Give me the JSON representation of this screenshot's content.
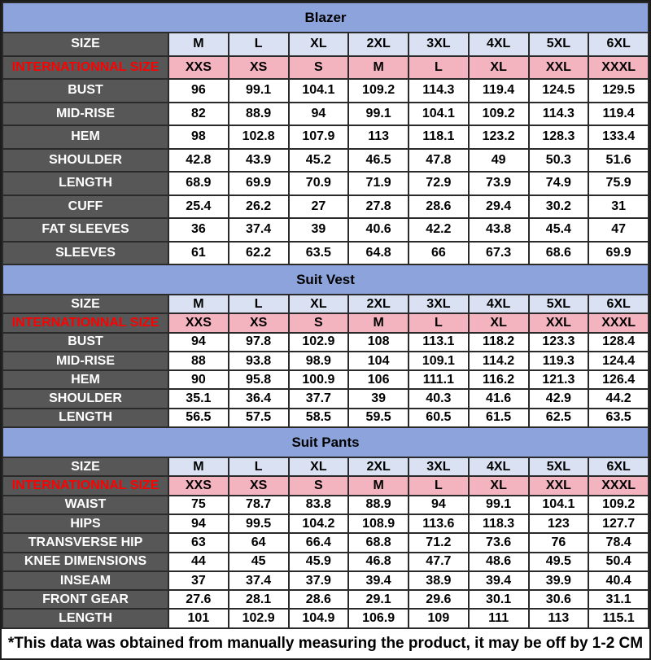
{
  "footer_note": "*This data was obtained from manually measuring the product, it may be off by 1-2 CM",
  "colors": {
    "section_title_bg": "#8CA4DB",
    "size_row_bg": "#D9E1F2",
    "intl_row_bg": "#F3B3BF",
    "label_column_bg": "#575757",
    "intl_label_text": "#FE0000",
    "label_text": "#FFFFFF",
    "border": "#2A2A2A"
  },
  "chart_data": [
    {
      "type": "table",
      "title": "Blazer",
      "rows": [
        {
          "kind": "size",
          "label": "SIZE",
          "values": [
            "M",
            "L",
            "XL",
            "2XL",
            "3XL",
            "4XL",
            "5XL",
            "6XL"
          ]
        },
        {
          "kind": "intl",
          "label": "INTERNATIONNAL SIZE",
          "values": [
            "XXS",
            "XS",
            "S",
            "M",
            "L",
            "XL",
            "XXL",
            "XXXL"
          ]
        },
        {
          "kind": "data",
          "label": "BUST",
          "values": [
            96,
            99.1,
            104.1,
            109.2,
            114.3,
            119.4,
            124.5,
            129.5
          ]
        },
        {
          "kind": "data",
          "label": "MID-RISE",
          "values": [
            82,
            88.9,
            94,
            99.1,
            104.1,
            109.2,
            114.3,
            119.4
          ]
        },
        {
          "kind": "data",
          "label": "HEM",
          "values": [
            98,
            102.8,
            107.9,
            113,
            118.1,
            123.2,
            128.3,
            133.4
          ]
        },
        {
          "kind": "data",
          "label": "SHOULDER",
          "values": [
            42.8,
            43.9,
            45.2,
            46.5,
            47.8,
            49,
            50.3,
            51.6
          ]
        },
        {
          "kind": "data",
          "label": "LENGTH",
          "values": [
            68.9,
            69.9,
            70.9,
            71.9,
            72.9,
            73.9,
            74.9,
            75.9
          ]
        },
        {
          "kind": "data",
          "label": "CUFF",
          "values": [
            25.4,
            26.2,
            27,
            27.8,
            28.6,
            29.4,
            30.2,
            31
          ]
        },
        {
          "kind": "data",
          "label": "FAT SLEEVES",
          "values": [
            36,
            37.4,
            39,
            40.6,
            42.2,
            43.8,
            45.4,
            47
          ]
        },
        {
          "kind": "data",
          "label": "SLEEVES",
          "values": [
            61,
            62.2,
            63.5,
            64.8,
            66,
            67.3,
            68.6,
            69.9
          ]
        }
      ]
    },
    {
      "type": "table",
      "title": "Suit Vest",
      "rows": [
        {
          "kind": "size",
          "label": "SIZE",
          "values": [
            "M",
            "L",
            "XL",
            "2XL",
            "3XL",
            "4XL",
            "5XL",
            "6XL"
          ]
        },
        {
          "kind": "intl",
          "label": "INTERNATIONNAL SIZE",
          "values": [
            "XXS",
            "XS",
            "S",
            "M",
            "L",
            "XL",
            "XXL",
            "XXXL"
          ]
        },
        {
          "kind": "data",
          "label": "BUST",
          "values": [
            94,
            97.8,
            102.9,
            108,
            113.1,
            118.2,
            123.3,
            128.4
          ]
        },
        {
          "kind": "data",
          "label": "MID-RISE",
          "values": [
            88,
            93.8,
            98.9,
            104,
            109.1,
            114.2,
            119.3,
            124.4
          ]
        },
        {
          "kind": "data",
          "label": "HEM",
          "values": [
            90,
            95.8,
            100.9,
            106,
            111.1,
            116.2,
            121.3,
            126.4
          ]
        },
        {
          "kind": "data",
          "label": "SHOULDER",
          "values": [
            35.1,
            36.4,
            37.7,
            39,
            40.3,
            41.6,
            42.9,
            44.2
          ]
        },
        {
          "kind": "data",
          "label": "LENGTH",
          "values": [
            56.5,
            57.5,
            58.5,
            59.5,
            60.5,
            61.5,
            62.5,
            63.5
          ]
        }
      ]
    },
    {
      "type": "table",
      "title": "Suit Pants",
      "rows": [
        {
          "kind": "size",
          "label": "SIZE",
          "values": [
            "M",
            "L",
            "XL",
            "2XL",
            "3XL",
            "4XL",
            "5XL",
            "6XL"
          ]
        },
        {
          "kind": "intl",
          "label": "INTERNATIONNAL SIZE",
          "values": [
            "XXS",
            "XS",
            "S",
            "M",
            "L",
            "XL",
            "XXL",
            "XXXL"
          ]
        },
        {
          "kind": "data",
          "label": "WAIST",
          "values": [
            75,
            78.7,
            83.8,
            88.9,
            94,
            99.1,
            104.1,
            109.2
          ]
        },
        {
          "kind": "data",
          "label": "HIPS",
          "values": [
            94,
            99.5,
            104.2,
            108.9,
            113.6,
            118.3,
            123,
            127.7
          ]
        },
        {
          "kind": "data",
          "label": "TRANSVERSE HIP",
          "values": [
            63,
            64,
            66.4,
            68.8,
            71.2,
            73.6,
            76,
            78.4
          ]
        },
        {
          "kind": "data",
          "label": "KNEE DIMENSIONS",
          "values": [
            44,
            45,
            45.9,
            46.8,
            47.7,
            48.6,
            49.5,
            50.4
          ]
        },
        {
          "kind": "data",
          "label": "INSEAM",
          "values": [
            37,
            37.4,
            37.9,
            39.4,
            38.9,
            39.4,
            39.9,
            40.4
          ]
        },
        {
          "kind": "data",
          "label": "FRONT GEAR",
          "values": [
            27.6,
            28.1,
            28.6,
            29.1,
            29.6,
            30.1,
            30.6,
            31.1
          ]
        },
        {
          "kind": "data",
          "label": "LENGTH",
          "values": [
            101,
            102.9,
            104.9,
            106.9,
            109,
            111,
            113,
            115.1
          ]
        }
      ]
    }
  ]
}
